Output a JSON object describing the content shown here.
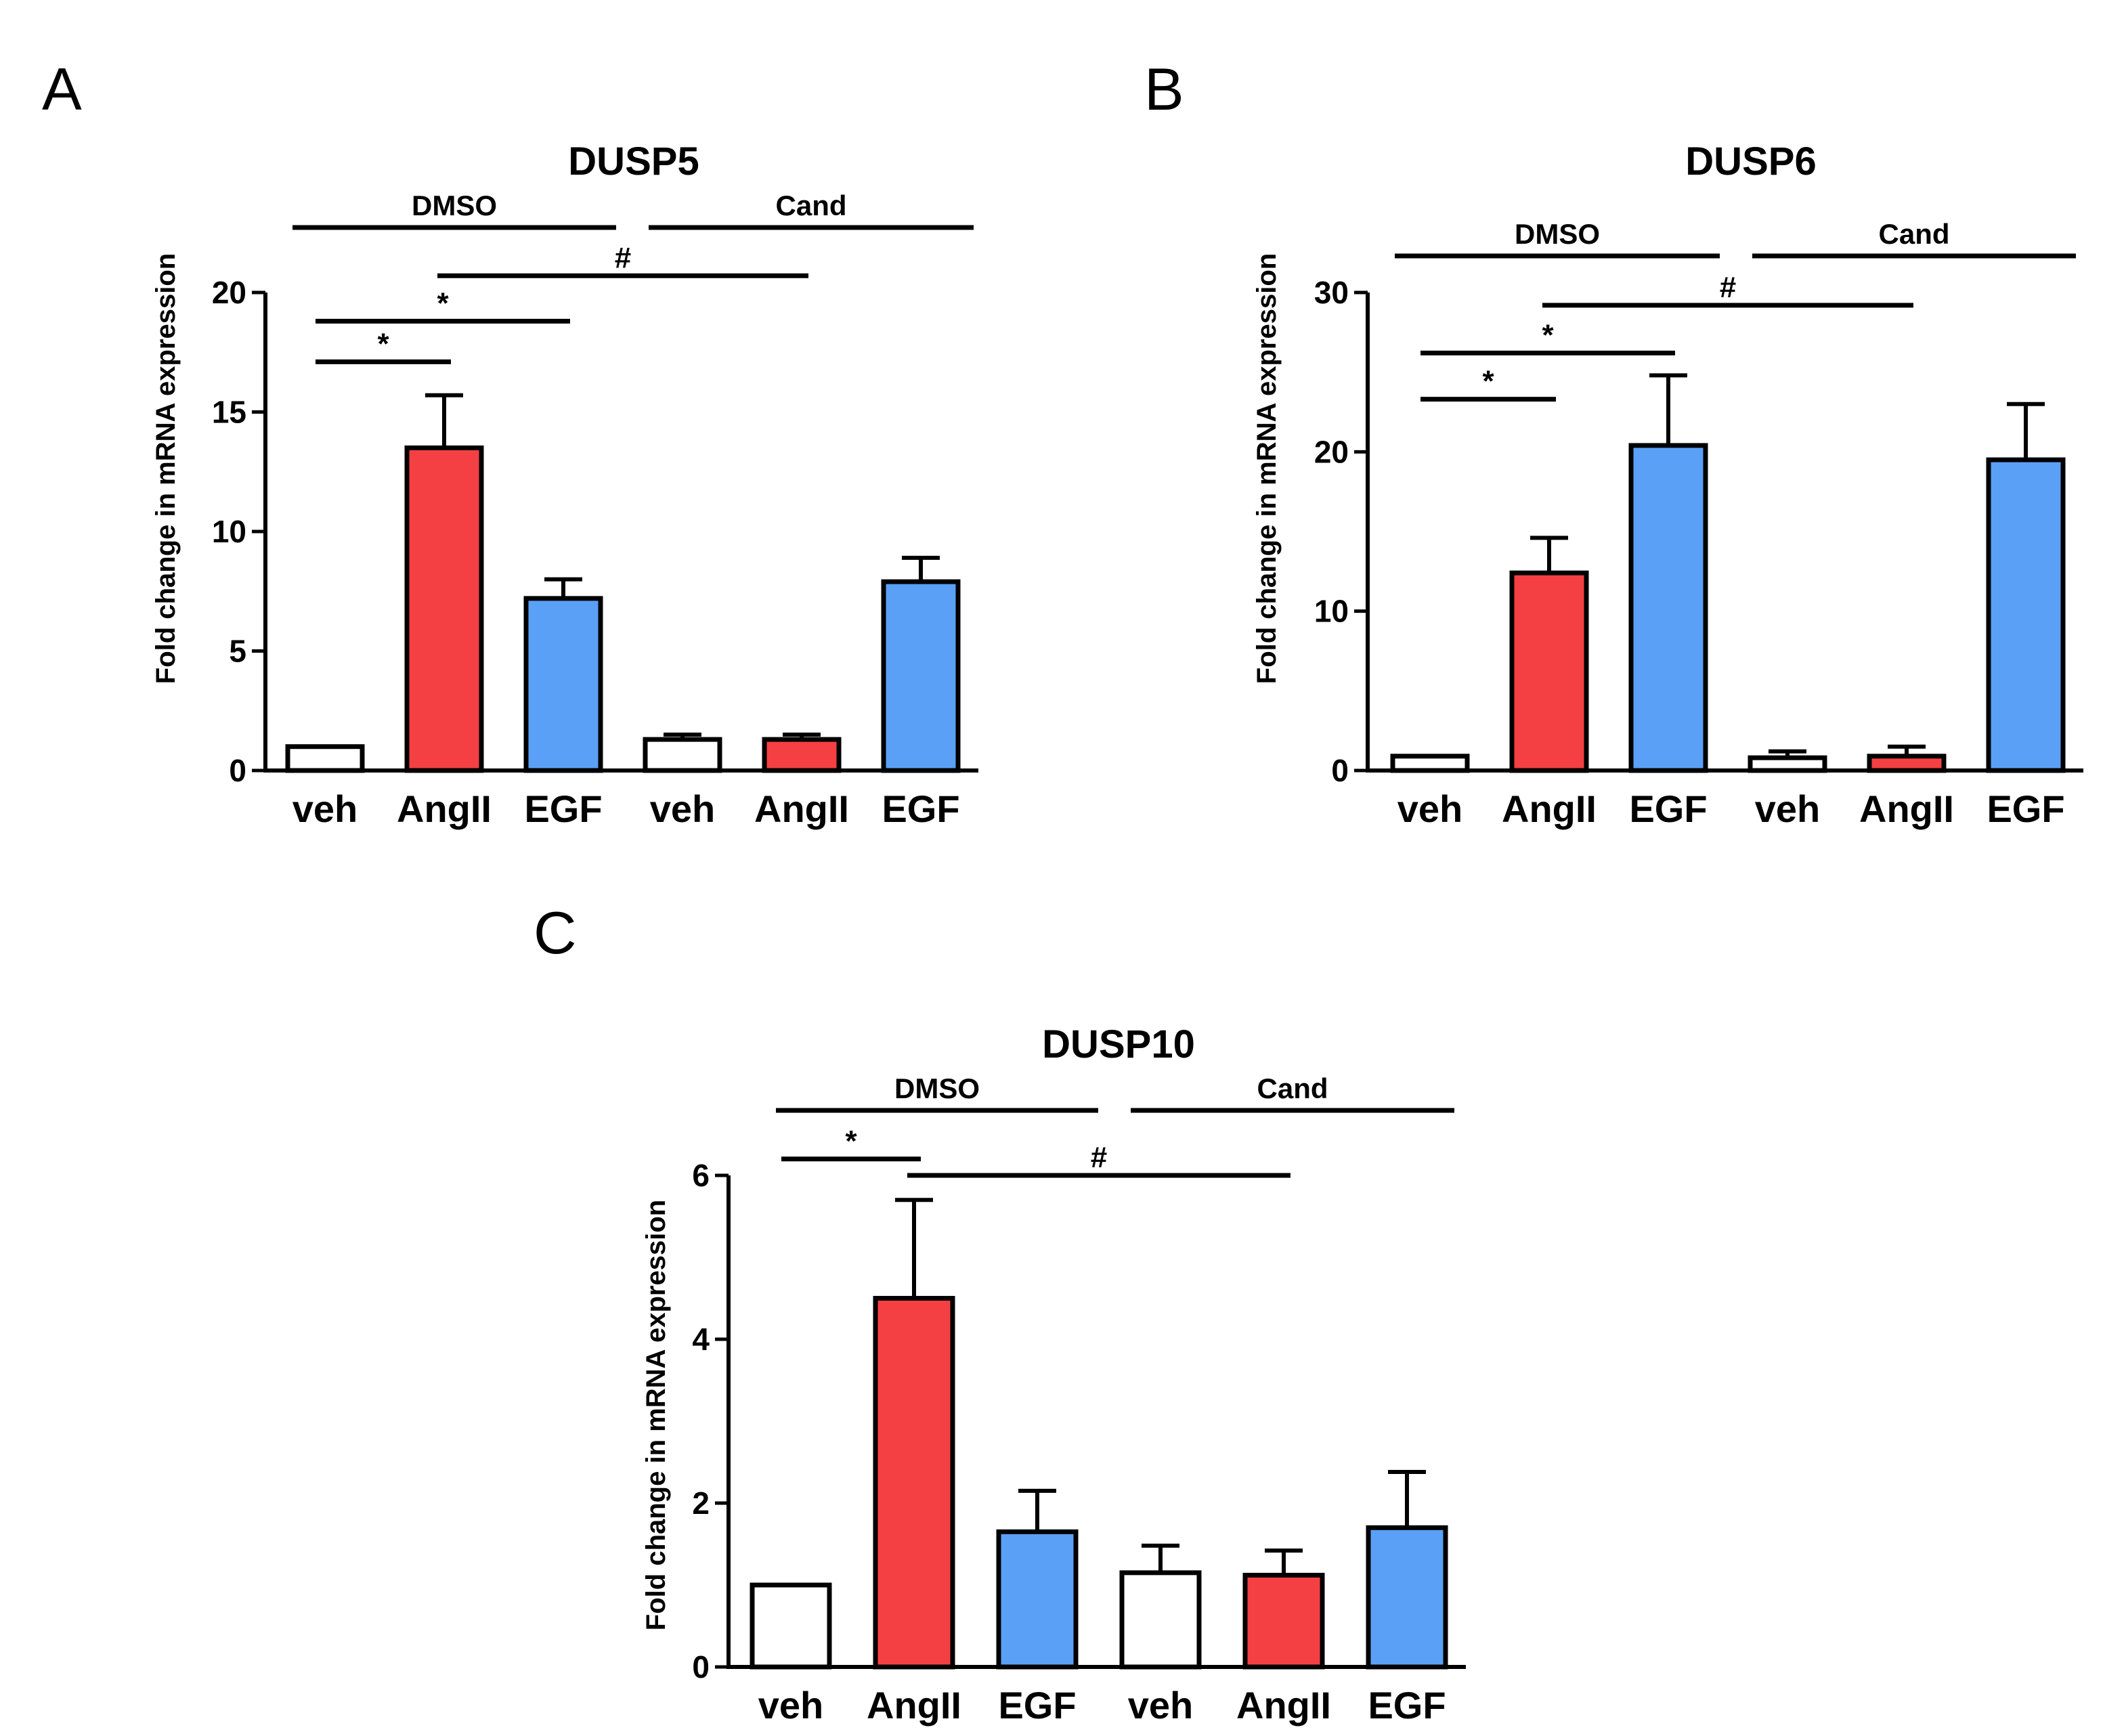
{
  "figure": {
    "chart_data": [
      {
        "panel": "A",
        "type": "bar",
        "title": "DUSP5",
        "ylabel": "Fold change in mRNA expression",
        "xlabel": "",
        "ylim": [
          0,
          20
        ],
        "yticks": [
          0,
          5,
          10,
          15,
          20
        ],
        "categories": [
          "veh",
          "AngII",
          "EGF",
          "veh",
          "AngII",
          "EGF"
        ],
        "values": [
          1.0,
          13.5,
          7.2,
          1.3,
          1.3,
          7.9
        ],
        "errors": [
          0.0,
          2.2,
          0.8,
          0.2,
          0.2,
          1.0
        ],
        "bar_colors": [
          "#ffffff",
          "#f44043",
          "#5aa0f6",
          "#ffffff",
          "#f44043",
          "#5aa0f6"
        ],
        "groups": [
          {
            "label": "DMSO",
            "from": 0,
            "to": 2
          },
          {
            "label": "Cand",
            "from": 3,
            "to": 5
          }
        ],
        "significance": [
          {
            "label": "*",
            "from": 0,
            "to": 1,
            "level": 17.1
          },
          {
            "label": "*",
            "from": 0,
            "to": 2,
            "level": 18.8
          },
          {
            "label": "#",
            "from": 1,
            "to": 4,
            "level": 20.7
          }
        ]
      },
      {
        "panel": "B",
        "type": "bar",
        "title": "DUSP6",
        "ylabel": "Fold change in mRNA expression",
        "xlabel": "",
        "ylim": [
          0,
          30
        ],
        "yticks": [
          0,
          10,
          20,
          30
        ],
        "categories": [
          "veh",
          "AngII",
          "EGF",
          "veh",
          "AngII",
          "EGF"
        ],
        "values": [
          0.9,
          12.4,
          20.4,
          0.8,
          0.9,
          19.5
        ],
        "errors": [
          0.0,
          2.2,
          4.4,
          0.4,
          0.6,
          3.5
        ],
        "bar_colors": [
          "#ffffff",
          "#f44043",
          "#5aa0f6",
          "#ffffff",
          "#f44043",
          "#5aa0f6"
        ],
        "groups": [
          {
            "label": "DMSO",
            "from": 0,
            "to": 2
          },
          {
            "label": "Cand",
            "from": 3,
            "to": 5
          }
        ],
        "significance": [
          {
            "label": "*",
            "from": 0,
            "to": 1,
            "level": 23.3
          },
          {
            "label": "*",
            "from": 0,
            "to": 2,
            "level": 26.2
          },
          {
            "label": "#",
            "from": 1,
            "to": 4,
            "level": 29.2
          }
        ]
      },
      {
        "panel": "C",
        "type": "bar",
        "title": "DUSP10",
        "ylabel": "Fold change in mRNA expression",
        "xlabel": "",
        "ylim": [
          0,
          6
        ],
        "yticks": [
          0,
          2,
          4,
          6
        ],
        "categories": [
          "veh",
          "AngII",
          "EGF",
          "veh",
          "AngII",
          "EGF"
        ],
        "values": [
          1.0,
          4.5,
          1.65,
          1.15,
          1.12,
          1.7
        ],
        "errors": [
          0.0,
          1.2,
          0.5,
          0.33,
          0.3,
          0.68
        ],
        "bar_colors": [
          "#ffffff",
          "#f44043",
          "#5aa0f6",
          "#ffffff",
          "#f44043",
          "#5aa0f6"
        ],
        "groups": [
          {
            "label": "DMSO",
            "from": 0,
            "to": 2
          },
          {
            "label": "Cand",
            "from": 3,
            "to": 5
          }
        ],
        "significance": [
          {
            "label": "*",
            "from": 0,
            "to": 1,
            "level": 6.2
          },
          {
            "label": "#",
            "from": 1,
            "to": 4,
            "level": 6.0
          }
        ]
      }
    ]
  }
}
